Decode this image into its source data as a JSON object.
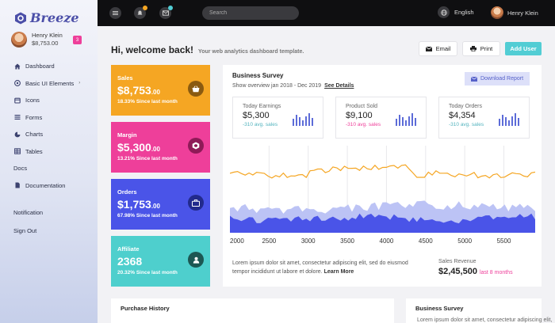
{
  "brand": {
    "name": "Breeze",
    "color": "#4b4fa8"
  },
  "profile": {
    "name": "Henry Klein",
    "amount": "$8,753.00",
    "badge": "3"
  },
  "sidebar": {
    "items": [
      {
        "label": "Dashboard",
        "icon": "home-icon"
      },
      {
        "label": "Basic UI Elements",
        "icon": "compass-icon",
        "chevron": "›"
      },
      {
        "label": "Icons",
        "icon": "box-icon"
      },
      {
        "label": "Forms",
        "icon": "list-icon"
      },
      {
        "label": "Charts",
        "icon": "chart-icon"
      },
      {
        "label": "Tables",
        "icon": "table-icon"
      },
      {
        "label": "Docs"
      },
      {
        "label": "Documentation",
        "icon": "doc-icon"
      }
    ],
    "notification": "Notification",
    "signout": "Sign Out"
  },
  "topbar": {
    "search_placeholder": "Search",
    "language": "English",
    "user": "Henry Klein",
    "notif_dot_color": "#f5a623",
    "mail_dot_color": "#52cdd4"
  },
  "header": {
    "title": "Hi, welcome back!",
    "subtitle": "Your web analytics dashboard template.",
    "email_label": "Email",
    "print_label": "Print",
    "add_user_label": "Add User"
  },
  "stats": [
    {
      "title": "Sales",
      "value": "$8,753",
      "cents": ".00",
      "sub": "18.33% Since last month",
      "color": "#f5a623",
      "icon": "basket-icon"
    },
    {
      "title": "Margin",
      "value": "$5,300",
      "cents": ".00",
      "sub": "13.21% Since last month",
      "color": "#ee3f9a",
      "icon": "cube-icon"
    },
    {
      "title": "Orders",
      "value": "$1,753",
      "cents": ".00",
      "sub": "67.98% Since last month",
      "color": "#4a54e8",
      "icon": "briefcase-icon"
    },
    {
      "title": "Affiliate",
      "value": "2368",
      "cents": "",
      "sub": "20.32% Since last month",
      "color": "#4ecfcd",
      "icon": "user-icon"
    }
  ],
  "survey": {
    "title": "Business Survey",
    "subtitle": "Show overview jan 2018 - Dec 2019",
    "see_details": "See Details",
    "download": "Download Report",
    "minis": [
      {
        "title": "Today Earnings",
        "value": "$5,300",
        "sub": "-310 avg. sales",
        "tone": "teal"
      },
      {
        "title": "Product Sold",
        "value": "$9,100",
        "sub": "-310 avg. sales",
        "tone": "pink"
      },
      {
        "title": "Today Orders",
        "value": "$4,354",
        "sub": "-310 avg. sales",
        "tone": "teal"
      }
    ],
    "text": "Lorem ipsum dolor sit amet, consectetur adipiscing elit, sed do eiusmod tempor incididunt ut labore et dolore.",
    "learn_more": "Learn More",
    "revenue_label": "Sales Revenue",
    "revenue_value": "$2,45,500",
    "revenue_period": "last 8 months"
  },
  "chart_data": {
    "type": "area",
    "x_ticks": [
      2000,
      2500,
      3000,
      3500,
      4000,
      4500,
      5000,
      5500
    ],
    "xlim": [
      2000,
      5900
    ],
    "colors": {
      "line": "#f5a623",
      "area_back": "#bcc3f5",
      "area_front": "#4a54e8"
    }
  },
  "bottom": {
    "purchase_title": "Purchase History",
    "survey_title": "Business Survey",
    "survey_text": "Lorem ipsum dolor sit amet, consectetur adipiscing elit,"
  }
}
